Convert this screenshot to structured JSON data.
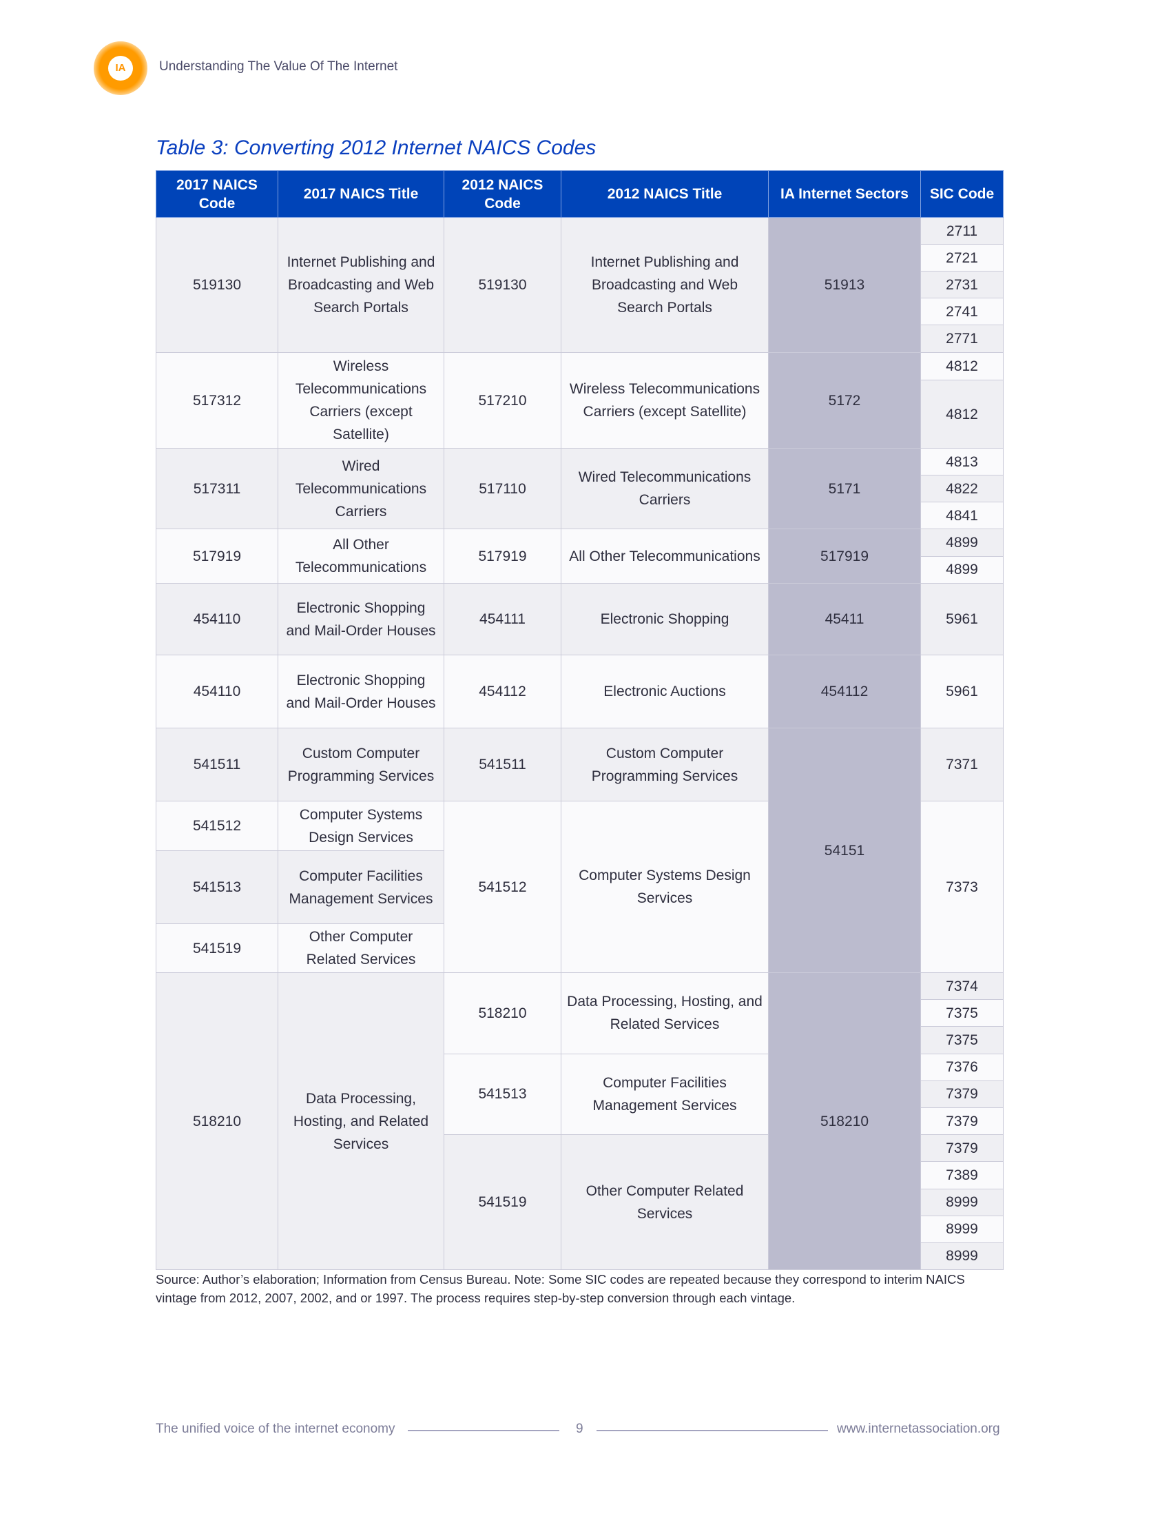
{
  "header": {
    "logo_text": "IA",
    "doc_title": "Understanding The Value Of The Internet"
  },
  "table_title": "Table 3: Converting 2012 Internet NAICS Codes",
  "table": {
    "headers": [
      "2017 NAICS Code",
      "2017 NAICS Title",
      "2012 NAICS Code",
      "2012 NAICS Title",
      "IA Internet Sectors",
      "SIC Code"
    ],
    "groups": [
      {
        "naics2017": "519130",
        "title2017": "Internet Publishing and Broadcasting and Web Search Portals",
        "naics2012": "519130",
        "title2012": "Internet Publishing and Broadcasting and Web Search Portals",
        "ia": "51913",
        "sic": [
          "2711",
          "2721",
          "2731",
          "2741",
          "2771"
        ]
      },
      {
        "naics2017": "517312",
        "title2017": "Wireless Telecommunications Carriers (except Satellite)",
        "naics2012": "517210",
        "title2012": "Wireless Telecommunications Carriers (except Satellite)",
        "ia": "5172",
        "sic": [
          "4812",
          "4812"
        ]
      },
      {
        "naics2017": "517311",
        "title2017": "Wired Telecommunications Carriers",
        "naics2012": "517110",
        "title2012": "Wired Telecommunications Carriers",
        "ia": "5171",
        "sic": [
          "4813",
          "4822",
          "4841"
        ]
      },
      {
        "naics2017": "517919",
        "title2017": "All Other Telecommunications",
        "naics2012": "517919",
        "title2012": "All Other Telecommunications",
        "ia": "517919",
        "sic": [
          "4899",
          "4899"
        ]
      },
      {
        "naics2017": "454110",
        "title2017": "Electronic Shopping and Mail-Order Houses",
        "naics2012": "454111",
        "title2012": "Electronic Shopping",
        "ia": "45411",
        "sic": [
          "5961"
        ]
      },
      {
        "naics2017": "454110",
        "title2017": "Electronic Shopping and Mail-Order Houses",
        "naics2012": "454112",
        "title2012": "Electronic Auctions",
        "ia": "454112",
        "sic": [
          "5961"
        ]
      }
    ],
    "group_54151": {
      "ia": "54151",
      "first": {
        "naics2017": "541511",
        "title2017": "Custom Computer Programming Services",
        "naics2012": "541511",
        "title2012": "Custom Computer Programming Services",
        "sic": "7371"
      },
      "rows2017": [
        {
          "naics2017": "541512",
          "title2017": "Computer Systems Design Services"
        },
        {
          "naics2017": "541513",
          "title2017": "Computer Facilities Management Services"
        },
        {
          "naics2017": "541519",
          "title2017": "Other Computer Related Services"
        }
      ],
      "naics2012": "541512",
      "title2012": "Computer Systems Design Services",
      "sic": "7373"
    },
    "group_518210": {
      "naics2017": "518210",
      "title2017": "Data Processing, Hosting, and Related Services",
      "ia": "518210",
      "sub2012": [
        {
          "naics2012": "518210",
          "title2012": "Data Processing, Hosting, and Related Services"
        },
        {
          "naics2012": "541513",
          "title2012": "Computer Facilities Management Services"
        },
        {
          "naics2012": "541519",
          "title2012": "Other Computer Related Services"
        }
      ],
      "sic": [
        "7374",
        "7375",
        "7375",
        "7376",
        "7379",
        "7379",
        "7379",
        "7389",
        "8999",
        "8999",
        "8999"
      ]
    }
  },
  "source_note": "Source: Author’s elaboration; Information from Census Bureau. Note: Some SIC codes are repeated because they correspond to interim NAICS vintage from 2012, 2007, 2002, and or 1997. The process requires step-by-step conversion through each vintage.",
  "footer": {
    "tagline": "The unified voice of the internet economy",
    "page": "9",
    "url": "www.internetassociation.org"
  }
}
